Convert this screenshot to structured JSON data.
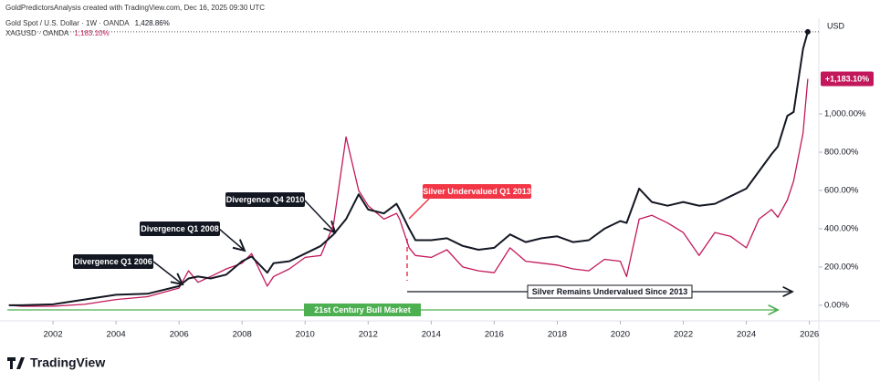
{
  "chart_data": {
    "type": "line",
    "header": "GoldPredictorsAnalysis created with TradingView.com, Dec 16, 2025 09:30 UTC",
    "currency": "USD",
    "brand": "TradingView",
    "x": [
      2000.6,
      2001,
      2002,
      2003,
      2004,
      2005,
      2006,
      2006.3,
      2006.6,
      2007,
      2007.5,
      2008,
      2008.3,
      2008.8,
      2009,
      2009.5,
      2010,
      2010.5,
      2010.9,
      2011.3,
      2011.7,
      2012,
      2012.5,
      2012.9,
      2013,
      2013.3,
      2013.5,
      2014,
      2014.5,
      2015,
      2015.5,
      2016,
      2016.5,
      2017,
      2017.5,
      2018,
      2018.5,
      2019,
      2019.5,
      2020,
      2020.2,
      2020.6,
      2021,
      2021.5,
      2022,
      2022.5,
      2023,
      2023.5,
      2024,
      2024.4,
      2024.8,
      2025,
      2025.3,
      2025.5,
      2025.8,
      2025.95
    ],
    "series": [
      {
        "name": "Gold Spot / U.S. Dollar · 1W · OANDA",
        "last_label": "1,428.86%",
        "color": "#131722",
        "values": [
          0,
          0,
          5,
          30,
          55,
          60,
          100,
          140,
          150,
          140,
          160,
          230,
          255,
          170,
          220,
          230,
          270,
          310,
          370,
          450,
          580,
          500,
          480,
          530,
          500,
          400,
          340,
          340,
          350,
          310,
          290,
          300,
          370,
          330,
          350,
          360,
          330,
          340,
          400,
          440,
          430,
          610,
          540,
          520,
          540,
          520,
          530,
          570,
          610,
          700,
          790,
          830,
          990,
          1010,
          1340,
          1428.86
        ]
      },
      {
        "name": "XAGUSD · OANDA",
        "last_label": "1,183.10%",
        "badge_label": "+1,183.10%",
        "color": "#c2185b",
        "values": [
          0,
          -5,
          -5,
          5,
          30,
          45,
          90,
          180,
          120,
          150,
          190,
          220,
          270,
          100,
          150,
          190,
          250,
          260,
          420,
          880,
          600,
          520,
          450,
          480,
          450,
          300,
          260,
          250,
          290,
          200,
          180,
          170,
          300,
          230,
          220,
          210,
          190,
          180,
          240,
          230,
          150,
          450,
          470,
          430,
          380,
          260,
          380,
          360,
          300,
          450,
          500,
          460,
          550,
          650,
          900,
          1183.1
        ]
      }
    ],
    "xlim": [
      2000.55,
      2026.3
    ],
    "xticks": [
      2002,
      2004,
      2006,
      2008,
      2010,
      2012,
      2014,
      2016,
      2018,
      2020,
      2022,
      2024,
      2026
    ],
    "ylim": [
      -48,
      1500
    ],
    "yticks": [
      {
        "value": 0,
        "label": "0.00%"
      },
      {
        "value": 200,
        "label": "200.00%"
      },
      {
        "value": 400,
        "label": "400.00%"
      },
      {
        "value": 600,
        "label": "600.00%"
      },
      {
        "value": 800,
        "label": "800.00%"
      },
      {
        "value": 1000,
        "label": "1,000.00%"
      }
    ],
    "annotations": [
      "Divergence Q1 2006",
      "Divergence Q1 2008",
      "Divergence Q4 2010",
      "Silver Undervalued Q1 2013",
      "Silver Remains Undervalued Since 2013",
      "21st Century Bull Market"
    ]
  }
}
